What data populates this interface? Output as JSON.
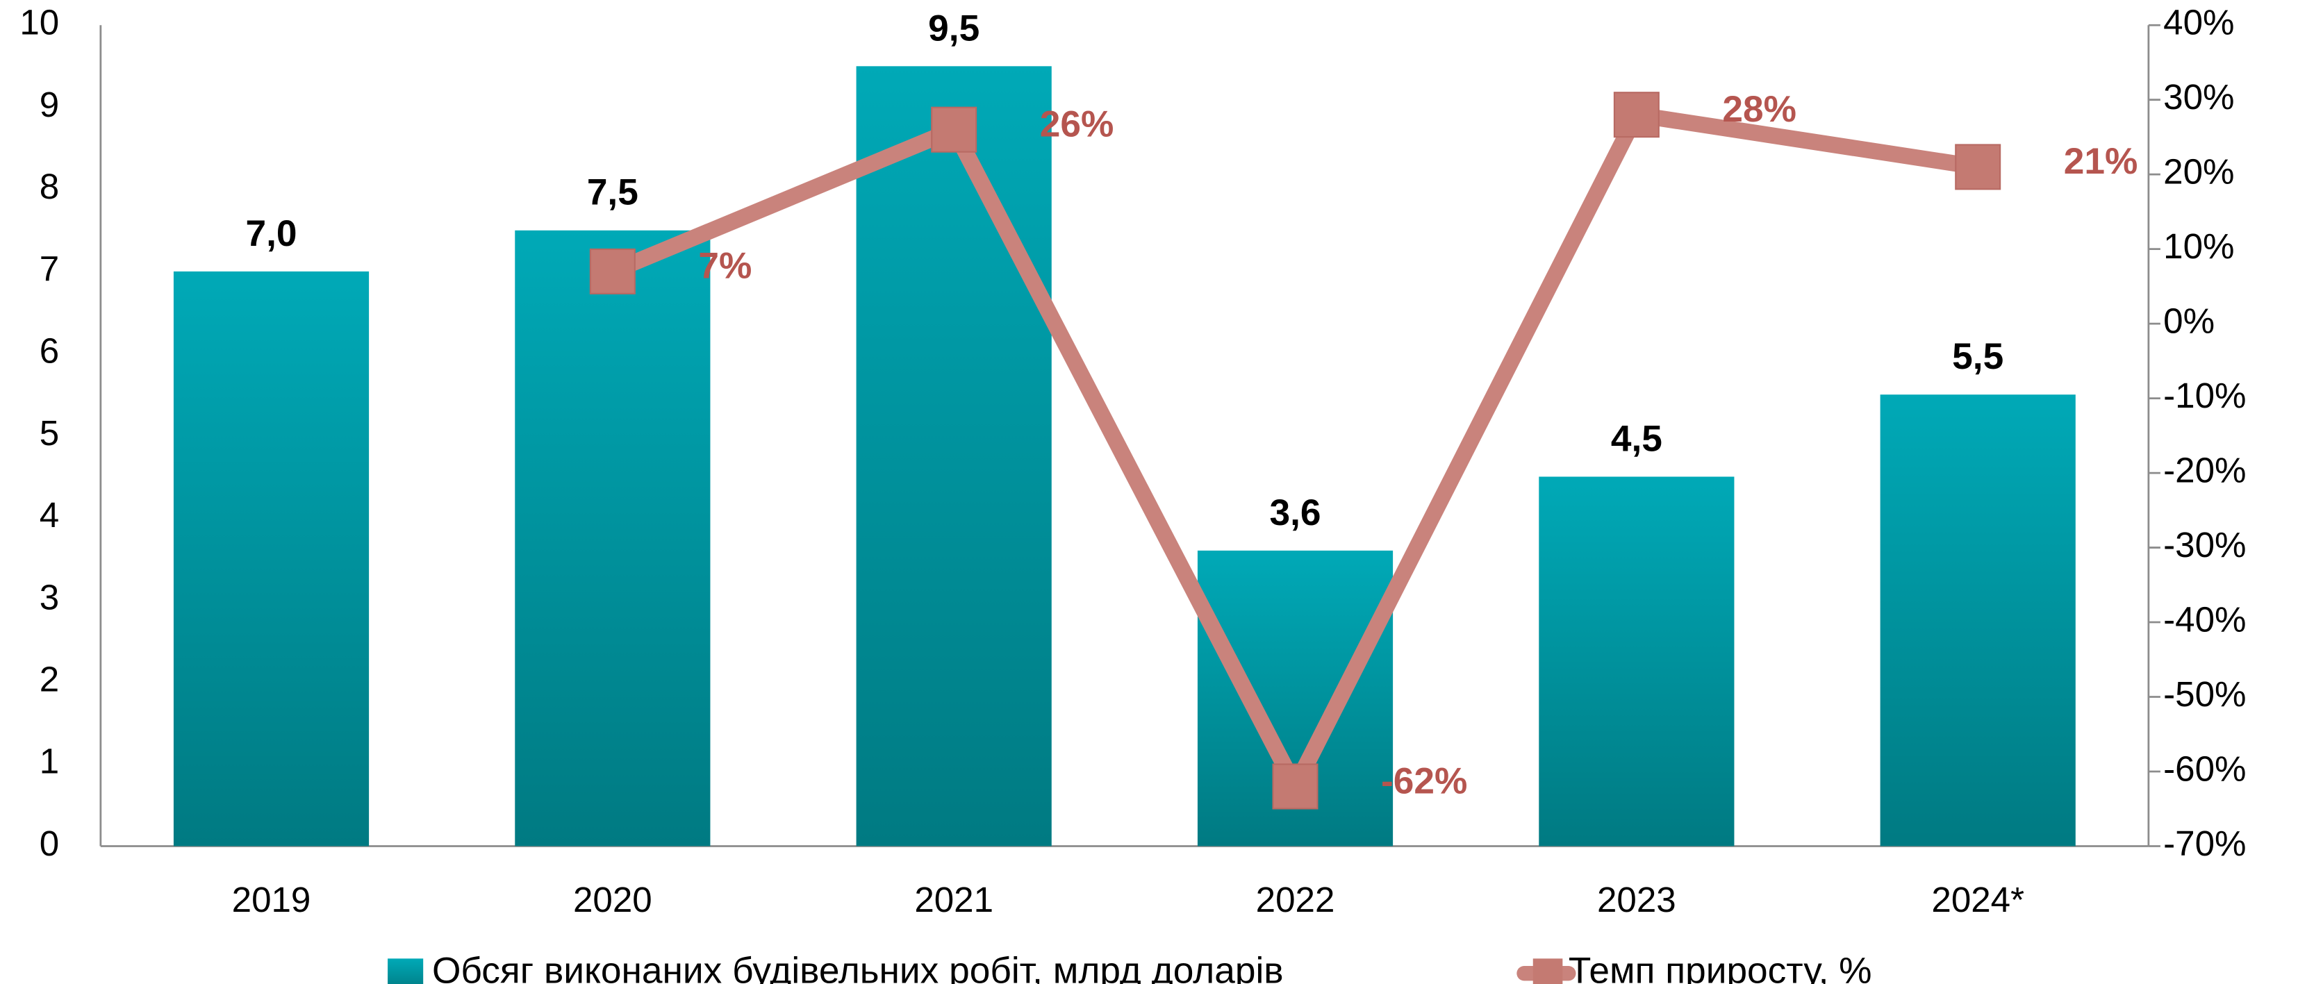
{
  "chart_data": {
    "type": "bar",
    "categories": [
      "2019",
      "2020",
      "2021",
      "2022",
      "2023",
      "2024*"
    ],
    "series": [
      {
        "name": "Обсяг виконаних будівельних робіт, млрд доларів",
        "type": "bar",
        "color": "#00a3b0",
        "values": [
          7.0,
          7.5,
          9.5,
          3.6,
          4.5,
          5.5
        ],
        "value_labels": [
          "7,0",
          "7,5",
          "9,5",
          "3,6",
          "4,5",
          "5,5"
        ]
      },
      {
        "name": "Темп приросту, %",
        "type": "line",
        "axis": "y2",
        "color": "#c9837c",
        "values": [
          null,
          7,
          26,
          -62,
          28,
          21
        ],
        "value_labels": [
          null,
          "7%",
          "26%",
          "-62%",
          "28%",
          "21%"
        ]
      }
    ],
    "ylim": [
      0,
      10
    ],
    "yticks": [
      0,
      1,
      2,
      3,
      4,
      5,
      6,
      7,
      8,
      9,
      10
    ],
    "y2lim": [
      -70,
      40
    ],
    "y2ticks": [
      {
        "value": -70,
        "label": "-70%"
      },
      {
        "value": -60,
        "label": "-60%"
      },
      {
        "value": -50,
        "label": "-50%"
      },
      {
        "value": -40,
        "label": "-40%"
      },
      {
        "value": -30,
        "label": "-30%"
      },
      {
        "value": -20,
        "label": "-20%"
      },
      {
        "value": -10,
        "label": "-10%"
      },
      {
        "value": 0,
        "label": "0%"
      },
      {
        "value": 10,
        "label": "10%"
      },
      {
        "value": 20,
        "label": "20%"
      },
      {
        "value": 30,
        "label": "30%"
      },
      {
        "value": 40,
        "label": "40%"
      }
    ],
    "grid": false,
    "legend": "bottom"
  }
}
